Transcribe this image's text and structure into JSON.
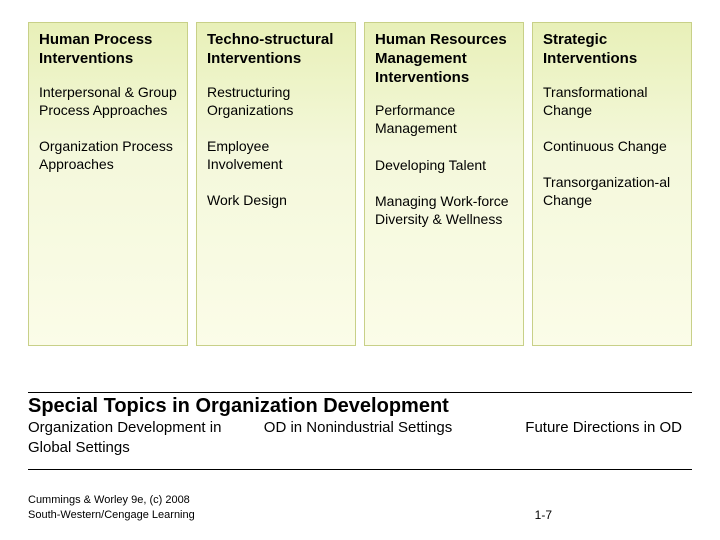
{
  "columns": [
    {
      "header": "Human Process Interventions",
      "items": [
        "Interpersonal & Group Process Approaches",
        "Organization Process Approaches"
      ]
    },
    {
      "header": "Techno-structural Interventions",
      "items": [
        "Restructuring Organizations",
        "Employee Involvement",
        "Work Design"
      ]
    },
    {
      "header": "Human Resources Management Interventions",
      "items": [
        "Performance Management",
        "Developing Talent",
        "Managing Work-force Diversity & Wellness"
      ]
    },
    {
      "header": "Strategic Interventions",
      "items": [
        "Transformational Change",
        "Continuous Change",
        "Transorganization-al Change"
      ]
    }
  ],
  "special": {
    "title": "Special Topics in Organization Development",
    "items": [
      "Organization Development in Global Settings",
      "OD in Nonindustrial Settings",
      "Future Directions in OD"
    ]
  },
  "footer": {
    "credit": "Cummings & Worley 9e, (c) 2008 South-Western/Cengage Learning",
    "page": "1-7"
  },
  "style": {
    "col_bg_top": "#e8f0b8",
    "col_bg_bottom": "#fbfce8",
    "col_border": "#c8d088",
    "text_color": "#000000",
    "header_fontsize": 15,
    "item_fontsize": 14,
    "special_title_fontsize": 20
  }
}
